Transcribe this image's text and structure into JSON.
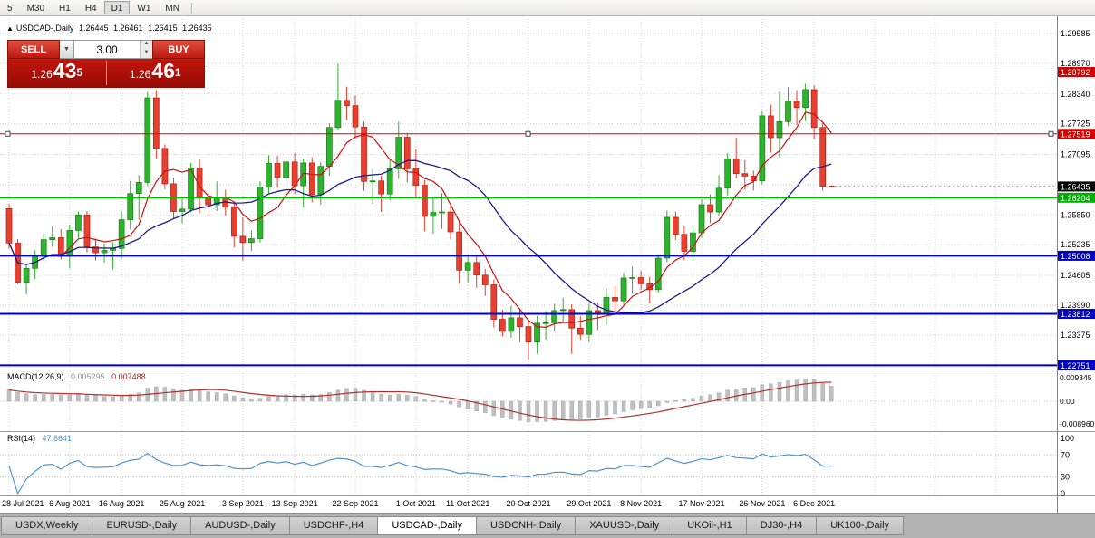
{
  "toolbar": {
    "buttons": [
      {
        "label": "5"
      },
      {
        "label": "M30"
      },
      {
        "label": "H1"
      },
      {
        "label": "H4"
      },
      {
        "label": "D1",
        "active": true
      },
      {
        "label": "W1"
      },
      {
        "label": "MN"
      }
    ]
  },
  "chart_header": {
    "arrow": "▲",
    "symbol": "USDCAD-,Daily",
    "open": "1.26445",
    "high": "1.26461",
    "low": "1.26415",
    "close": "1.26435"
  },
  "trade_panel": {
    "sell_label": "SELL",
    "buy_label": "BUY",
    "volume": "3.00",
    "sell_price": {
      "base": "1.26",
      "pips": "43",
      "pipette": "5"
    },
    "buy_price": {
      "base": "1.26",
      "pips": "46",
      "pipette": "1"
    }
  },
  "macd_panel": {
    "label": "MACD(12,26,9)",
    "value_main": "0.005295",
    "value_signal": "0.007488",
    "params": {
      "fast": 12,
      "slow": 26,
      "signal": 9
    },
    "axis_labels": [
      {
        "text": "0.009345",
        "value": 0.009345
      },
      {
        "text": "0.00",
        "value": 0
      },
      {
        "text": "-0.008960",
        "value": -0.00896
      }
    ]
  },
  "rsi_panel": {
    "label": "RSI(14)",
    "value": "47.6641",
    "period": 14,
    "levels": [
      70,
      30
    ],
    "axis_labels": [
      {
        "text": "100",
        "value": 100
      },
      {
        "text": "70",
        "value": 70
      },
      {
        "text": "30",
        "value": 30
      },
      {
        "text": "0",
        "value": 0
      }
    ]
  },
  "tabs": {
    "items": [
      {
        "label": "USDX,Weekly"
      },
      {
        "label": "EURUSD-,Daily"
      },
      {
        "label": "AUDUSD-,Daily"
      },
      {
        "label": "USDCHF-,H4"
      },
      {
        "label": "USDCAD-,Daily",
        "active": true
      },
      {
        "label": "USDCNH-,Daily"
      },
      {
        "label": "XAUUSD-,Daily"
      },
      {
        "label": "UKOil-,H1"
      },
      {
        "label": "DJ30-,H4"
      },
      {
        "label": "UK100-,Daily"
      }
    ]
  },
  "chart_data": {
    "type": "candlestick",
    "symbol": "USDCAD-",
    "timeframe": "Daily",
    "grid": true,
    "price_range": {
      "axis_top": 1.29585,
      "axis_bottom": 1.22751
    },
    "price_axis_labels": [
      {
        "text": "1.29585",
        "value": 1.29585
      },
      {
        "text": "1.28970",
        "value": 1.2897
      },
      {
        "text": "1.28340",
        "value": 1.2834
      },
      {
        "text": "1.27725",
        "value": 1.27725
      },
      {
        "text": "1.27095",
        "value": 1.27095
      },
      {
        "text": "1.25850",
        "value": 1.2585
      },
      {
        "text": "1.25235",
        "value": 1.25235
      },
      {
        "text": "1.24605",
        "value": 1.24605
      },
      {
        "text": "1.23990",
        "value": 1.2399
      },
      {
        "text": "1.23375",
        "value": 1.23375
      }
    ],
    "grid_prices": [
      1.29585,
      1.2897,
      1.2834,
      1.27725,
      1.27095,
      1.2647,
      1.2585,
      1.25235,
      1.24605,
      1.2399,
      1.23375,
      1.2276
    ],
    "hlines": [
      {
        "price": 1.28792,
        "color": "#e00000",
        "width": 1,
        "handles": false
      },
      {
        "price": 1.27519,
        "color": "#e00000",
        "width": 1,
        "handles": true
      },
      {
        "price": 1.26204,
        "color": "#00c000",
        "width": 2,
        "handles": false
      },
      {
        "price": 1.25008,
        "color": "#0000c8",
        "width": 2,
        "handles": false
      },
      {
        "price": 1.23812,
        "color": "#0000c8",
        "width": 2,
        "handles": false
      },
      {
        "price": 1.22751,
        "color": "#0000c8",
        "width": 2,
        "handles": false
      }
    ],
    "price_badges": [
      {
        "text": "1.28792",
        "value": 1.28792,
        "color": "#d40000"
      },
      {
        "text": "1.27519",
        "value": 1.27519,
        "color": "#d40000"
      },
      {
        "text": "1.26435",
        "value": 1.26435,
        "color": "#000000"
      },
      {
        "text": "1.26204",
        "value": 1.26204,
        "color": "#00b000"
      },
      {
        "text": "1.25008",
        "value": 1.25008,
        "color": "#0000c0"
      },
      {
        "text": "1.23812",
        "value": 1.23812,
        "color": "#0000c0"
      },
      {
        "text": "1.22751",
        "value": 1.22751,
        "color": "#0000c0"
      }
    ],
    "current_price": {
      "text": "1.26435",
      "value": 1.26435
    },
    "date_ticks": [
      {
        "label": "28 Jul 2021",
        "i": 0
      },
      {
        "label": "6 Aug 2021",
        "i": 7
      },
      {
        "label": "16 Aug 2021",
        "i": 13
      },
      {
        "label": "25 Aug 2021",
        "i": 20
      },
      {
        "label": "3 Sep 2021",
        "i": 27
      },
      {
        "label": "13 Sep 2021",
        "i": 33
      },
      {
        "label": "22 Sep 2021",
        "i": 40
      },
      {
        "label": "1 Oct 2021",
        "i": 47
      },
      {
        "label": "11 Oct 2021",
        "i": 53
      },
      {
        "label": "20 Oct 2021",
        "i": 60
      },
      {
        "label": "29 Oct 2021",
        "i": 67
      },
      {
        "label": "8 Nov 2021",
        "i": 73
      },
      {
        "label": "17 Nov 2021",
        "i": 80
      },
      {
        "label": "26 Nov 2021",
        "i": 87
      },
      {
        "label": "6 Dec 2021",
        "i": 93
      }
    ],
    "extra_grid_indices": [
      100,
      107,
      114
    ],
    "ma_fast": {
      "period": 6,
      "color": "#cc1111"
    },
    "ma_slow": {
      "period": 18,
      "color": "#1c1c8f"
    },
    "colors": {
      "up": "#2db32d",
      "up_border": "#1d7a1d",
      "down": "#e8402e",
      "down_border": "#b22216",
      "grid": "#d2d2d2",
      "macd_hist": "#c0c0c0",
      "macd_hist_border": "#a8a8a8",
      "macd_signal": "#b03030",
      "rsi": "#4f94cd"
    },
    "candles": [
      [
        1.2598,
        1.2608,
        1.2515,
        1.2527
      ],
      [
        1.2527,
        1.2535,
        1.2442,
        1.2446
      ],
      [
        1.2446,
        1.2483,
        1.2421,
        1.2475
      ],
      [
        1.2475,
        1.2512,
        1.2453,
        1.2501
      ],
      [
        1.2501,
        1.2547,
        1.249,
        1.2534
      ],
      [
        1.2534,
        1.2562,
        1.2519,
        1.2538
      ],
      [
        1.2538,
        1.2556,
        1.2493,
        1.2502
      ],
      [
        1.2502,
        1.2565,
        1.2475,
        1.2553
      ],
      [
        1.2553,
        1.2592,
        1.2537,
        1.2585
      ],
      [
        1.2585,
        1.2593,
        1.2508,
        1.2519
      ],
      [
        1.2519,
        1.2536,
        1.2491,
        1.2507
      ],
      [
        1.2507,
        1.2526,
        1.2487,
        1.2512
      ],
      [
        1.2512,
        1.2529,
        1.2473,
        1.2516
      ],
      [
        1.2516,
        1.2592,
        1.2495,
        1.2575
      ],
      [
        1.2575,
        1.2655,
        1.2555,
        1.2629
      ],
      [
        1.2629,
        1.2667,
        1.2575,
        1.2652
      ],
      [
        1.2652,
        1.2838,
        1.2645,
        1.2826
      ],
      [
        1.2826,
        1.2842,
        1.27,
        1.2722
      ],
      [
        1.2722,
        1.273,
        1.2638,
        1.2649
      ],
      [
        1.2649,
        1.2662,
        1.2578,
        1.2592
      ],
      [
        1.2592,
        1.2618,
        1.2568,
        1.2597
      ],
      [
        1.2597,
        1.2692,
        1.259,
        1.2682
      ],
      [
        1.2682,
        1.2699,
        1.2588,
        1.2621
      ],
      [
        1.2621,
        1.264,
        1.2581,
        1.2606
      ],
      [
        1.2606,
        1.2654,
        1.2593,
        1.262
      ],
      [
        1.262,
        1.2637,
        1.2584,
        1.2601
      ],
      [
        1.2601,
        1.261,
        1.2518,
        1.2541
      ],
      [
        1.2541,
        1.258,
        1.2491,
        1.2528
      ],
      [
        1.2528,
        1.2553,
        1.2511,
        1.2536
      ],
      [
        1.2536,
        1.2654,
        1.2528,
        1.2642
      ],
      [
        1.2642,
        1.2708,
        1.263,
        1.2691
      ],
      [
        1.2691,
        1.2707,
        1.2641,
        1.2662
      ],
      [
        1.2662,
        1.2706,
        1.2632,
        1.2694
      ],
      [
        1.2694,
        1.2712,
        1.2628,
        1.2645
      ],
      [
        1.2645,
        1.2701,
        1.26,
        1.2692
      ],
      [
        1.2692,
        1.2704,
        1.2611,
        1.2627
      ],
      [
        1.2627,
        1.2694,
        1.2606,
        1.2685
      ],
      [
        1.2685,
        1.2774,
        1.2665,
        1.2765
      ],
      [
        1.2765,
        1.2896,
        1.276,
        1.2821
      ],
      [
        1.2821,
        1.2849,
        1.278,
        1.281
      ],
      [
        1.281,
        1.2831,
        1.2742,
        1.2766
      ],
      [
        1.2766,
        1.2777,
        1.2634,
        1.2654
      ],
      [
        1.2654,
        1.268,
        1.2608,
        1.2655
      ],
      [
        1.2655,
        1.2666,
        1.2591,
        1.2628
      ],
      [
        1.2628,
        1.2697,
        1.2615,
        1.268
      ],
      [
        1.268,
        1.2777,
        1.2659,
        1.2745
      ],
      [
        1.2745,
        1.2754,
        1.2652,
        1.268
      ],
      [
        1.268,
        1.272,
        1.262,
        1.2646
      ],
      [
        1.2646,
        1.2657,
        1.2551,
        1.2582
      ],
      [
        1.2582,
        1.2622,
        1.2546,
        1.259
      ],
      [
        1.259,
        1.263,
        1.2556,
        1.2591
      ],
      [
        1.2591,
        1.2605,
        1.2534,
        1.255
      ],
      [
        1.255,
        1.2572,
        1.2444,
        1.2471
      ],
      [
        1.2471,
        1.2504,
        1.2446,
        1.2487
      ],
      [
        1.2487,
        1.2501,
        1.2435,
        1.2461
      ],
      [
        1.2461,
        1.2474,
        1.2418,
        1.2441
      ],
      [
        1.2441,
        1.2452,
        1.2353,
        1.237
      ],
      [
        1.237,
        1.239,
        1.2335,
        1.2345
      ],
      [
        1.2345,
        1.2398,
        1.2332,
        1.2373
      ],
      [
        1.2373,
        1.239,
        1.2322,
        1.2355
      ],
      [
        1.2355,
        1.2367,
        1.2287,
        1.2323
      ],
      [
        1.2323,
        1.2377,
        1.2299,
        1.2362
      ],
      [
        1.2362,
        1.2387,
        1.2328,
        1.2363
      ],
      [
        1.2363,
        1.2402,
        1.2345,
        1.2388
      ],
      [
        1.2388,
        1.2414,
        1.2365,
        1.239
      ],
      [
        1.239,
        1.2401,
        1.2299,
        1.2352
      ],
      [
        1.2352,
        1.2377,
        1.2328,
        1.2339
      ],
      [
        1.2339,
        1.2402,
        1.2323,
        1.2388
      ],
      [
        1.2388,
        1.2404,
        1.2348,
        1.238
      ],
      [
        1.238,
        1.2434,
        1.2358,
        1.2415
      ],
      [
        1.2415,
        1.2439,
        1.2385,
        1.2408
      ],
      [
        1.2408,
        1.2466,
        1.24,
        1.2455
      ],
      [
        1.2455,
        1.2478,
        1.2422,
        1.2456
      ],
      [
        1.2456,
        1.247,
        1.243,
        1.2443
      ],
      [
        1.2443,
        1.2457,
        1.2403,
        1.2431
      ],
      [
        1.2431,
        1.2504,
        1.2425,
        1.2496
      ],
      [
        1.2496,
        1.2594,
        1.2488,
        1.258
      ],
      [
        1.258,
        1.2592,
        1.2533,
        1.2545
      ],
      [
        1.2545,
        1.2562,
        1.2492,
        1.251
      ],
      [
        1.251,
        1.2562,
        1.2491,
        1.2548
      ],
      [
        1.2548,
        1.2617,
        1.2538,
        1.2606
      ],
      [
        1.2606,
        1.2627,
        1.2568,
        1.2591
      ],
      [
        1.2591,
        1.2667,
        1.2583,
        1.264
      ],
      [
        1.264,
        1.2712,
        1.2625,
        1.27
      ],
      [
        1.27,
        1.2744,
        1.266,
        1.267
      ],
      [
        1.267,
        1.2698,
        1.2637,
        1.2665
      ],
      [
        1.2665,
        1.2676,
        1.2635,
        1.2655
      ],
      [
        1.2655,
        1.2798,
        1.2648,
        1.2789
      ],
      [
        1.2789,
        1.2812,
        1.2713,
        1.2744
      ],
      [
        1.2744,
        1.2839,
        1.2703,
        1.2777
      ],
      [
        1.2777,
        1.2848,
        1.2768,
        1.2819
      ],
      [
        1.2819,
        1.2842,
        1.277,
        1.2806
      ],
      [
        1.2806,
        1.2855,
        1.2778,
        1.2843
      ],
      [
        1.2843,
        1.2852,
        1.274,
        1.2765
      ],
      [
        1.2765,
        1.2777,
        1.2635,
        1.2644
      ],
      [
        1.26445,
        1.26461,
        1.26415,
        1.26435
      ]
    ]
  }
}
